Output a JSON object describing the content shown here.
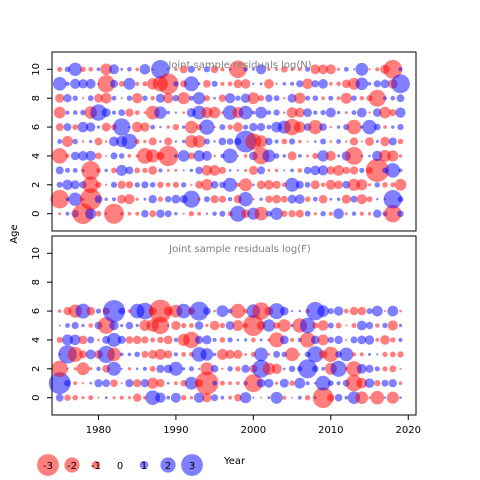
{
  "y_axis_label": "Age",
  "x_axis_label": "Year",
  "colors": {
    "negative": "#ff0000",
    "positive": "#0000ff"
  },
  "chart_data": [
    {
      "type": "scatter",
      "title": "Joint sample residuals log(N)",
      "ylabel": "Age",
      "xlabel": "",
      "xlim": [
        1974,
        2021
      ],
      "ylim": [
        -1.2,
        11.2
      ],
      "xticks": [],
      "yticks": [
        0,
        2,
        4,
        6,
        8,
        10
      ],
      "x_years": [
        1975,
        2019
      ],
      "ages": [
        0,
        1,
        2,
        3,
        4,
        5,
        6,
        7,
        8,
        9,
        10
      ],
      "grid": false,
      "encoding": "bubble size = |residual|, red = negative, blue = positive"
    },
    {
      "type": "scatter",
      "title": "Joint sample residuals log(F)",
      "ylabel": "",
      "xlabel": "Year",
      "xlim": [
        1974,
        2021
      ],
      "ylim": [
        -1.2,
        11.2
      ],
      "xticks": [
        1980,
        1990,
        2000,
        2010,
        2020
      ],
      "yticks": [
        0,
        2,
        4,
        6,
        8,
        10
      ],
      "x_years": [
        1975,
        2019
      ],
      "ages": [
        0,
        1,
        2,
        3,
        4,
        5,
        6
      ],
      "grid": false,
      "encoding": "bubble size = |residual|, red = negative, blue = positive"
    }
  ],
  "legend": {
    "items": [
      {
        "value": -3,
        "label": "-3"
      },
      {
        "value": -2,
        "label": "-2"
      },
      {
        "value": -1,
        "label": "-1"
      },
      {
        "value": 0,
        "label": "0"
      },
      {
        "value": 1,
        "label": "1"
      },
      {
        "value": 2,
        "label": "2"
      },
      {
        "value": 3,
        "label": "3"
      }
    ]
  }
}
